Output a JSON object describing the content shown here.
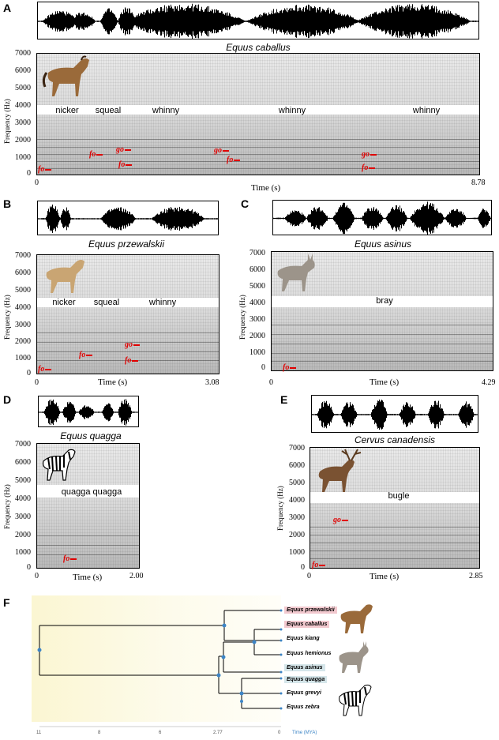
{
  "panels": {
    "A": {
      "letter": "A",
      "species": "Equus caballus",
      "calls": [
        "nicker",
        "squeal",
        "whinny",
        "whinny",
        "whinny"
      ],
      "markers": [
        "fo",
        "fo",
        "go",
        "fo",
        "go",
        "fo",
        "go",
        "fo"
      ],
      "yticks": [
        "7000",
        "6000",
        "5000",
        "4000",
        "3000",
        "2000",
        "1000",
        "0"
      ],
      "ylabel": "Frequency (Hz)",
      "xlabel": "Time (s)",
      "xstart": "0",
      "xend": "8.78"
    },
    "B": {
      "letter": "B",
      "species": "Equus przewalskii",
      "calls": [
        "nicker",
        "squeal",
        "whinny"
      ],
      "markers": [
        "fo",
        "fo",
        "go",
        "fo"
      ],
      "yticks": [
        "7000",
        "6000",
        "5000",
        "4000",
        "3000",
        "2000",
        "1000",
        "0"
      ],
      "ylabel": "Frequency (Hz)",
      "xlabel": "Time (s)",
      "xstart": "0",
      "xend": "3.08"
    },
    "C": {
      "letter": "C",
      "species": "Equus asinus",
      "calls": [
        "bray"
      ],
      "markers": [
        "fo"
      ],
      "yticks": [
        "7000",
        "6000",
        "5000",
        "4000",
        "3000",
        "2000",
        "1000",
        "0"
      ],
      "ylabel": "Frequency (Hz)",
      "xlabel": "Time (s)",
      "xstart": "0",
      "xend": "4.29"
    },
    "D": {
      "letter": "D",
      "species": "Equus quagga",
      "calls": [
        "quagga quagga"
      ],
      "markers": [
        "fo"
      ],
      "yticks": [
        "7000",
        "6000",
        "5000",
        "4000",
        "3000",
        "2000",
        "1000",
        "0"
      ],
      "ylabel": "Frequency (Hz)",
      "xlabel": "Time (s)",
      "xstart": "0",
      "xend": "2.00"
    },
    "E": {
      "letter": "E",
      "species": "Cervus canadensis",
      "calls": [
        "bugle"
      ],
      "markers": [
        "go",
        "fo"
      ],
      "yticks": [
        "7000",
        "6000",
        "5000",
        "4000",
        "3000",
        "2000",
        "1000",
        "0"
      ],
      "ylabel": "Frequency (Hz)",
      "xlabel": "Time (s)",
      "xstart": "0",
      "xend": "2.85"
    }
  },
  "tree": {
    "letter": "F",
    "taxa": [
      "Equus przewalskii",
      "Equus caballus",
      "Equus kiang",
      "Equus hemionus",
      "Equus asinus",
      "Equus quagga",
      "Equus grevyi",
      "Equus zebra"
    ],
    "highlight_colors": {
      "horse": "#f2c9cf",
      "donkey": "#d5e6ea",
      "zebra": "#d5e6ea"
    },
    "time_ticks": [
      "11",
      "8",
      "6",
      "2.77",
      "0"
    ],
    "time_label": "Time (MYA)"
  },
  "colors": {
    "marker": "#e00000",
    "node": "#3d85c6",
    "tree_bg": "#fbf7d8"
  }
}
